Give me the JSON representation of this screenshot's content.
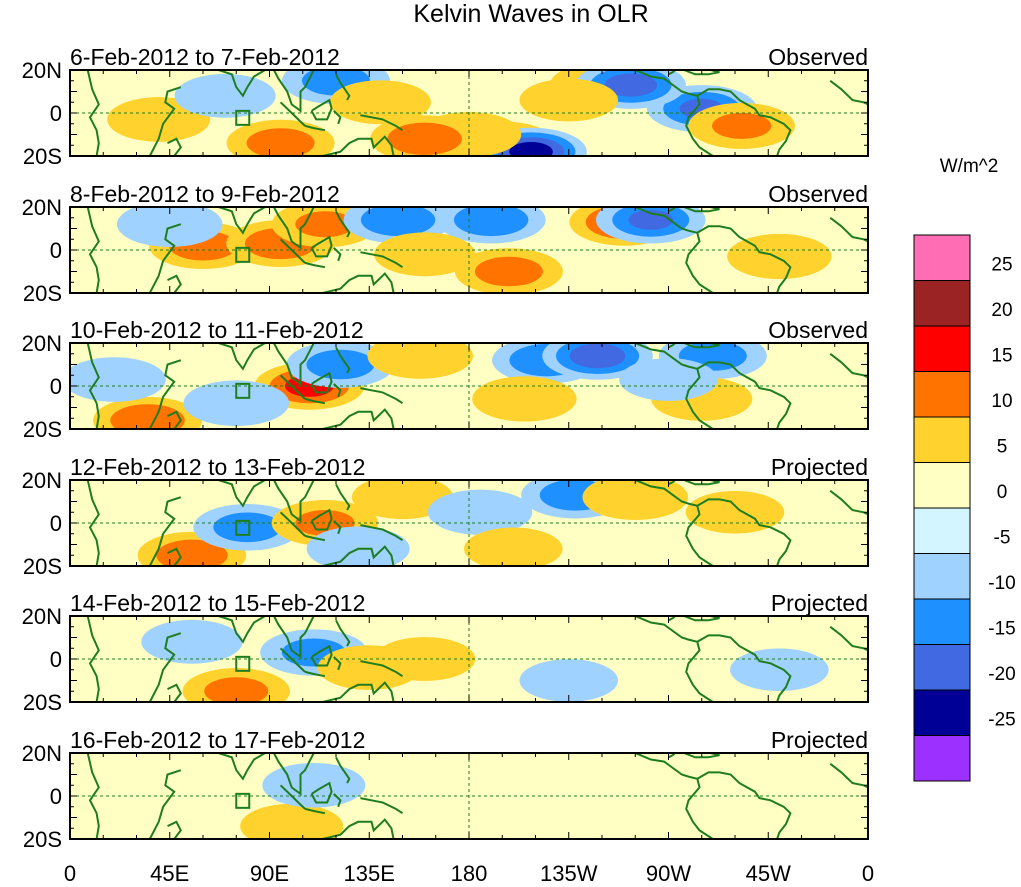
{
  "chart_data": {
    "type": "heatmap",
    "title": "Kelvin Waves in OLR",
    "colorbar": {
      "units": "W/m^2",
      "tick_labels": [
        "25",
        "20",
        "15",
        "10",
        "5",
        "0",
        "-5",
        "-10",
        "-15",
        "-20",
        "-25"
      ],
      "bins": [
        {
          "from": 25,
          "to": null,
          "color": "#ff6eb4"
        },
        {
          "from": 20,
          "to": 25,
          "color": "#9b2323"
        },
        {
          "from": 15,
          "to": 20,
          "color": "#ff0000"
        },
        {
          "from": 10,
          "to": 15,
          "color": "#ff7300"
        },
        {
          "from": 5,
          "to": 10,
          "color": "#ffd22d"
        },
        {
          "from": 0,
          "to": 5,
          "color": "#ffffc3"
        },
        {
          "from": -5,
          "to": 0,
          "color": "#d2f5ff"
        },
        {
          "from": -10,
          "to": -5,
          "color": "#a0d2ff"
        },
        {
          "from": -15,
          "to": -10,
          "color": "#1e90ff"
        },
        {
          "from": -20,
          "to": -15,
          "color": "#4169e1"
        },
        {
          "from": -25,
          "to": -20,
          "color": "#000096"
        },
        {
          "from": null,
          "to": -25,
          "color": "#9b30ff"
        }
      ]
    },
    "x_tick_labels": [
      "0",
      "45E",
      "90E",
      "135E",
      "180",
      "135W",
      "90W",
      "45W",
      "0"
    ],
    "y_tick_labels": [
      "20N",
      "0",
      "20S"
    ],
    "xlim_deg_east": [
      0,
      360
    ],
    "ylim_deg": [
      -20,
      20
    ],
    "panels": [
      {
        "period": "6-Feb-2012 to 7-Feb-2012",
        "status": "Observed",
        "blobs": [
          {
            "lon": 285,
            "lat": 2,
            "value": -15
          },
          {
            "lon": 303,
            "lat": -6,
            "value": 10
          },
          {
            "lon": 240,
            "lat": 13,
            "value": 8
          },
          {
            "lon": 253,
            "lat": 13,
            "value": -17
          },
          {
            "lon": 195,
            "lat": -15,
            "value": 18
          },
          {
            "lon": 208,
            "lat": -18,
            "value": -22
          },
          {
            "lon": 180,
            "lat": -10,
            "value": 8
          },
          {
            "lon": 160,
            "lat": -12,
            "value": 14
          },
          {
            "lon": 40,
            "lat": -3,
            "value": 7
          },
          {
            "lon": 70,
            "lat": 8,
            "value": -6
          },
          {
            "lon": 120,
            "lat": 15,
            "value": -12
          },
          {
            "lon": 95,
            "lat": -14,
            "value": 12
          },
          {
            "lon": 140,
            "lat": 5,
            "value": 6
          },
          {
            "lon": 225,
            "lat": 6,
            "value": 5
          }
        ]
      },
      {
        "period": "8-Feb-2012 to 9-Feb-2012",
        "status": "Observed",
        "blobs": [
          {
            "lon": 60,
            "lat": 2,
            "value": 12
          },
          {
            "lon": 95,
            "lat": 3,
            "value": 13
          },
          {
            "lon": 115,
            "lat": 12,
            "value": 10
          },
          {
            "lon": 148,
            "lat": 14,
            "value": -14
          },
          {
            "lon": 190,
            "lat": 14,
            "value": -14
          },
          {
            "lon": 198,
            "lat": -10,
            "value": 12
          },
          {
            "lon": 250,
            "lat": 13,
            "value": 15
          },
          {
            "lon": 262,
            "lat": 14,
            "value": -15
          },
          {
            "lon": 320,
            "lat": -3,
            "value": 8
          },
          {
            "lon": 45,
            "lat": 12,
            "value": -9
          },
          {
            "lon": 225,
            "lat": 5,
            "value": 4
          },
          {
            "lon": 160,
            "lat": -2,
            "value": 6
          }
        ]
      },
      {
        "period": "10-Feb-2012 to 11-Feb-2012",
        "status": "Observed",
        "blobs": [
          {
            "lon": 108,
            "lat": 0,
            "value": 16
          },
          {
            "lon": 122,
            "lat": 10,
            "value": -12
          },
          {
            "lon": 158,
            "lat": 14,
            "value": 9
          },
          {
            "lon": 215,
            "lat": 12,
            "value": -14
          },
          {
            "lon": 205,
            "lat": -6,
            "value": 8
          },
          {
            "lon": 238,
            "lat": 14,
            "value": -18
          },
          {
            "lon": 290,
            "lat": 14,
            "value": -12
          },
          {
            "lon": 285,
            "lat": -6,
            "value": 6
          },
          {
            "lon": 35,
            "lat": -16,
            "value": 14
          },
          {
            "lon": 20,
            "lat": 3,
            "value": -7
          },
          {
            "lon": 75,
            "lat": -8,
            "value": -9
          },
          {
            "lon": 270,
            "lat": 3,
            "value": -5
          }
        ]
      },
      {
        "period": "12-Feb-2012 to 13-Feb-2012",
        "status": "Projected",
        "blobs": [
          {
            "lon": 55,
            "lat": -15,
            "value": 13
          },
          {
            "lon": 80,
            "lat": -2,
            "value": -12
          },
          {
            "lon": 115,
            "lat": 0,
            "value": 10
          },
          {
            "lon": 228,
            "lat": 13,
            "value": -13
          },
          {
            "lon": 255,
            "lat": 12,
            "value": 9
          },
          {
            "lon": 150,
            "lat": 12,
            "value": 6
          },
          {
            "lon": 185,
            "lat": 5,
            "value": -8
          },
          {
            "lon": 200,
            "lat": -12,
            "value": 5
          },
          {
            "lon": 300,
            "lat": 5,
            "value": 5
          },
          {
            "lon": 130,
            "lat": -12,
            "value": -7
          }
        ]
      },
      {
        "period": "14-Feb-2012 to 15-Feb-2012",
        "status": "Projected",
        "blobs": [
          {
            "lon": 75,
            "lat": -15,
            "value": 11
          },
          {
            "lon": 110,
            "lat": 3,
            "value": -11
          },
          {
            "lon": 135,
            "lat": -4,
            "value": 7
          },
          {
            "lon": 160,
            "lat": 0,
            "value": 6
          },
          {
            "lon": 255,
            "lat": 5,
            "value": 4
          },
          {
            "lon": 55,
            "lat": 8,
            "value": -6
          },
          {
            "lon": 225,
            "lat": -10,
            "value": -5
          },
          {
            "lon": 320,
            "lat": -5,
            "value": -5
          }
        ]
      },
      {
        "period": "16-Feb-2012 to 17-Feb-2012",
        "status": "Projected",
        "blobs": [
          {
            "lon": 100,
            "lat": -14,
            "value": 7
          },
          {
            "lon": 110,
            "lat": 5,
            "value": -7
          },
          {
            "lon": 60,
            "lat": 3,
            "value": 4
          },
          {
            "lon": 155,
            "lat": -3,
            "value": 4
          },
          {
            "lon": 210,
            "lat": 2,
            "value": -4
          },
          {
            "lon": 290,
            "lat": 5,
            "value": 4
          }
        ]
      }
    ]
  }
}
